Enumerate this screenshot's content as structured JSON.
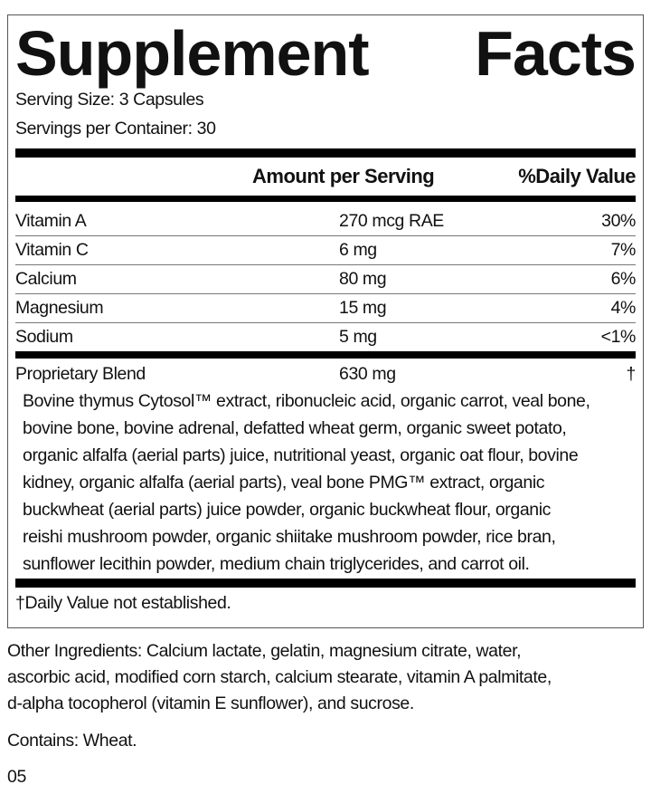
{
  "title": [
    "Supplement",
    "Facts"
  ],
  "serving_size": "Serving Size: 3 Capsules",
  "servings_per_container": "Servings per Container: 30",
  "header": {
    "amount": "Amount per Serving",
    "daily_value": "%Daily Value"
  },
  "nutrients": [
    {
      "name": "Vitamin A",
      "amount": "270 mcg RAE",
      "dv": "30%"
    },
    {
      "name": "Vitamin C",
      "amount": "6 mg",
      "dv": "7%"
    },
    {
      "name": "Calcium",
      "amount": "80 mg",
      "dv": "6%"
    },
    {
      "name": "Magnesium",
      "amount": "15 mg",
      "dv": "4%"
    },
    {
      "name": "Sodium",
      "amount": "5 mg",
      "dv": "<1%"
    }
  ],
  "blend": {
    "name": "Proprietary Blend",
    "amount": "630 mg",
    "dv": "†",
    "lines": [
      "Bovine thymus Cytosol™ extract, ribonucleic acid, organic carrot, veal bone,",
      "bovine bone, bovine adrenal, defatted wheat germ, organic sweet potato,",
      "organic alfalfa (aerial parts) juice, nutritional yeast, organic oat flour, bovine",
      "kidney, organic alfalfa (aerial parts), veal bone PMG™ extract, organic",
      "buckwheat (aerial parts) juice powder, organic buckwheat flour, organic",
      "reishi mushroom powder, organic shiitake mushroom powder, rice bran,",
      "sunflower lecithin powder, medium chain triglycerides, and carrot oil."
    ]
  },
  "footnote": "†Daily Value not established.",
  "other_ingredients": [
    "Other Ingredients: Calcium lactate, gelatin, magnesium citrate, water,",
    "ascorbic acid, modified corn starch, calcium stearate, vitamin A palmitate,",
    "d-alpha tocopherol (vitamin E sunflower), and sucrose."
  ],
  "contains": "Contains: Wheat.",
  "code": "05"
}
